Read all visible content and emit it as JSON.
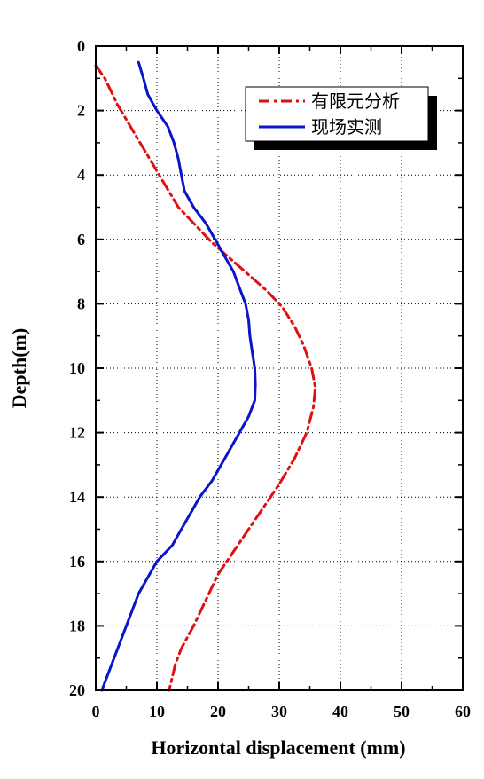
{
  "chart_data": {
    "type": "line",
    "xlabel": "Horizontal displacement (mm)",
    "ylabel": "Depth(m)",
    "xlim": [
      0,
      60
    ],
    "ylim": [
      0,
      20
    ],
    "y_inverted": true,
    "x_ticks": [
      0,
      10,
      20,
      30,
      40,
      50,
      60
    ],
    "y_ticks": [
      0,
      2,
      4,
      6,
      8,
      10,
      12,
      14,
      16,
      18,
      20
    ],
    "grid": "dotted",
    "legend_position": "top-right",
    "series": [
      {
        "name": "有限元分析",
        "color": "#e01010",
        "style": "dash-dot",
        "points": [
          [
            0,
            0.6
          ],
          [
            1.5,
            1.0
          ],
          [
            3.5,
            1.8
          ],
          [
            6,
            2.6
          ],
          [
            8.5,
            3.4
          ],
          [
            11,
            4.2
          ],
          [
            13.5,
            5.0
          ],
          [
            16.5,
            5.6
          ],
          [
            19,
            6.1
          ],
          [
            22,
            6.6
          ],
          [
            25,
            7.1
          ],
          [
            28,
            7.6
          ],
          [
            30.5,
            8.1
          ],
          [
            32.5,
            8.7
          ],
          [
            34,
            9.3
          ],
          [
            35.3,
            10.0
          ],
          [
            35.9,
            10.6
          ],
          [
            35.6,
            11.2
          ],
          [
            34.5,
            12.0
          ],
          [
            32.5,
            12.8
          ],
          [
            30,
            13.6
          ],
          [
            27.5,
            14.3
          ],
          [
            25,
            15.0
          ],
          [
            22.5,
            15.7
          ],
          [
            20,
            16.4
          ],
          [
            18,
            17.2
          ],
          [
            16,
            18.0
          ],
          [
            14,
            18.7
          ],
          [
            13,
            19.2
          ],
          [
            12.5,
            19.6
          ],
          [
            12,
            20
          ]
        ]
      },
      {
        "name": "现场实测",
        "color": "#0a14c8",
        "style": "solid",
        "points": [
          [
            7,
            0.5
          ],
          [
            7.8,
            1.0
          ],
          [
            8.5,
            1.5
          ],
          [
            10,
            2.0
          ],
          [
            11.8,
            2.5
          ],
          [
            12.8,
            3.0
          ],
          [
            13.5,
            3.5
          ],
          [
            14,
            4.0
          ],
          [
            14.5,
            4.5
          ],
          [
            16,
            5.0
          ],
          [
            18,
            5.5
          ],
          [
            19.5,
            6.0
          ],
          [
            21,
            6.5
          ],
          [
            22.5,
            7.0
          ],
          [
            23.5,
            7.5
          ],
          [
            24.5,
            8.0
          ],
          [
            25,
            8.5
          ],
          [
            25.2,
            9.0
          ],
          [
            25.6,
            9.5
          ],
          [
            26,
            10.0
          ],
          [
            26.1,
            10.5
          ],
          [
            26,
            11.0
          ],
          [
            25,
            11.5
          ],
          [
            23.5,
            12.0
          ],
          [
            22,
            12.5
          ],
          [
            20.5,
            13.0
          ],
          [
            19,
            13.5
          ],
          [
            17,
            14.0
          ],
          [
            15.5,
            14.5
          ],
          [
            14,
            15.0
          ],
          [
            12.5,
            15.5
          ],
          [
            10,
            16.0
          ],
          [
            8.5,
            16.5
          ],
          [
            7,
            17.0
          ],
          [
            6,
            17.5
          ],
          [
            5,
            18.0
          ],
          [
            4,
            18.5
          ],
          [
            3,
            19.0
          ],
          [
            2,
            19.5
          ],
          [
            1,
            20.0
          ]
        ]
      }
    ]
  }
}
